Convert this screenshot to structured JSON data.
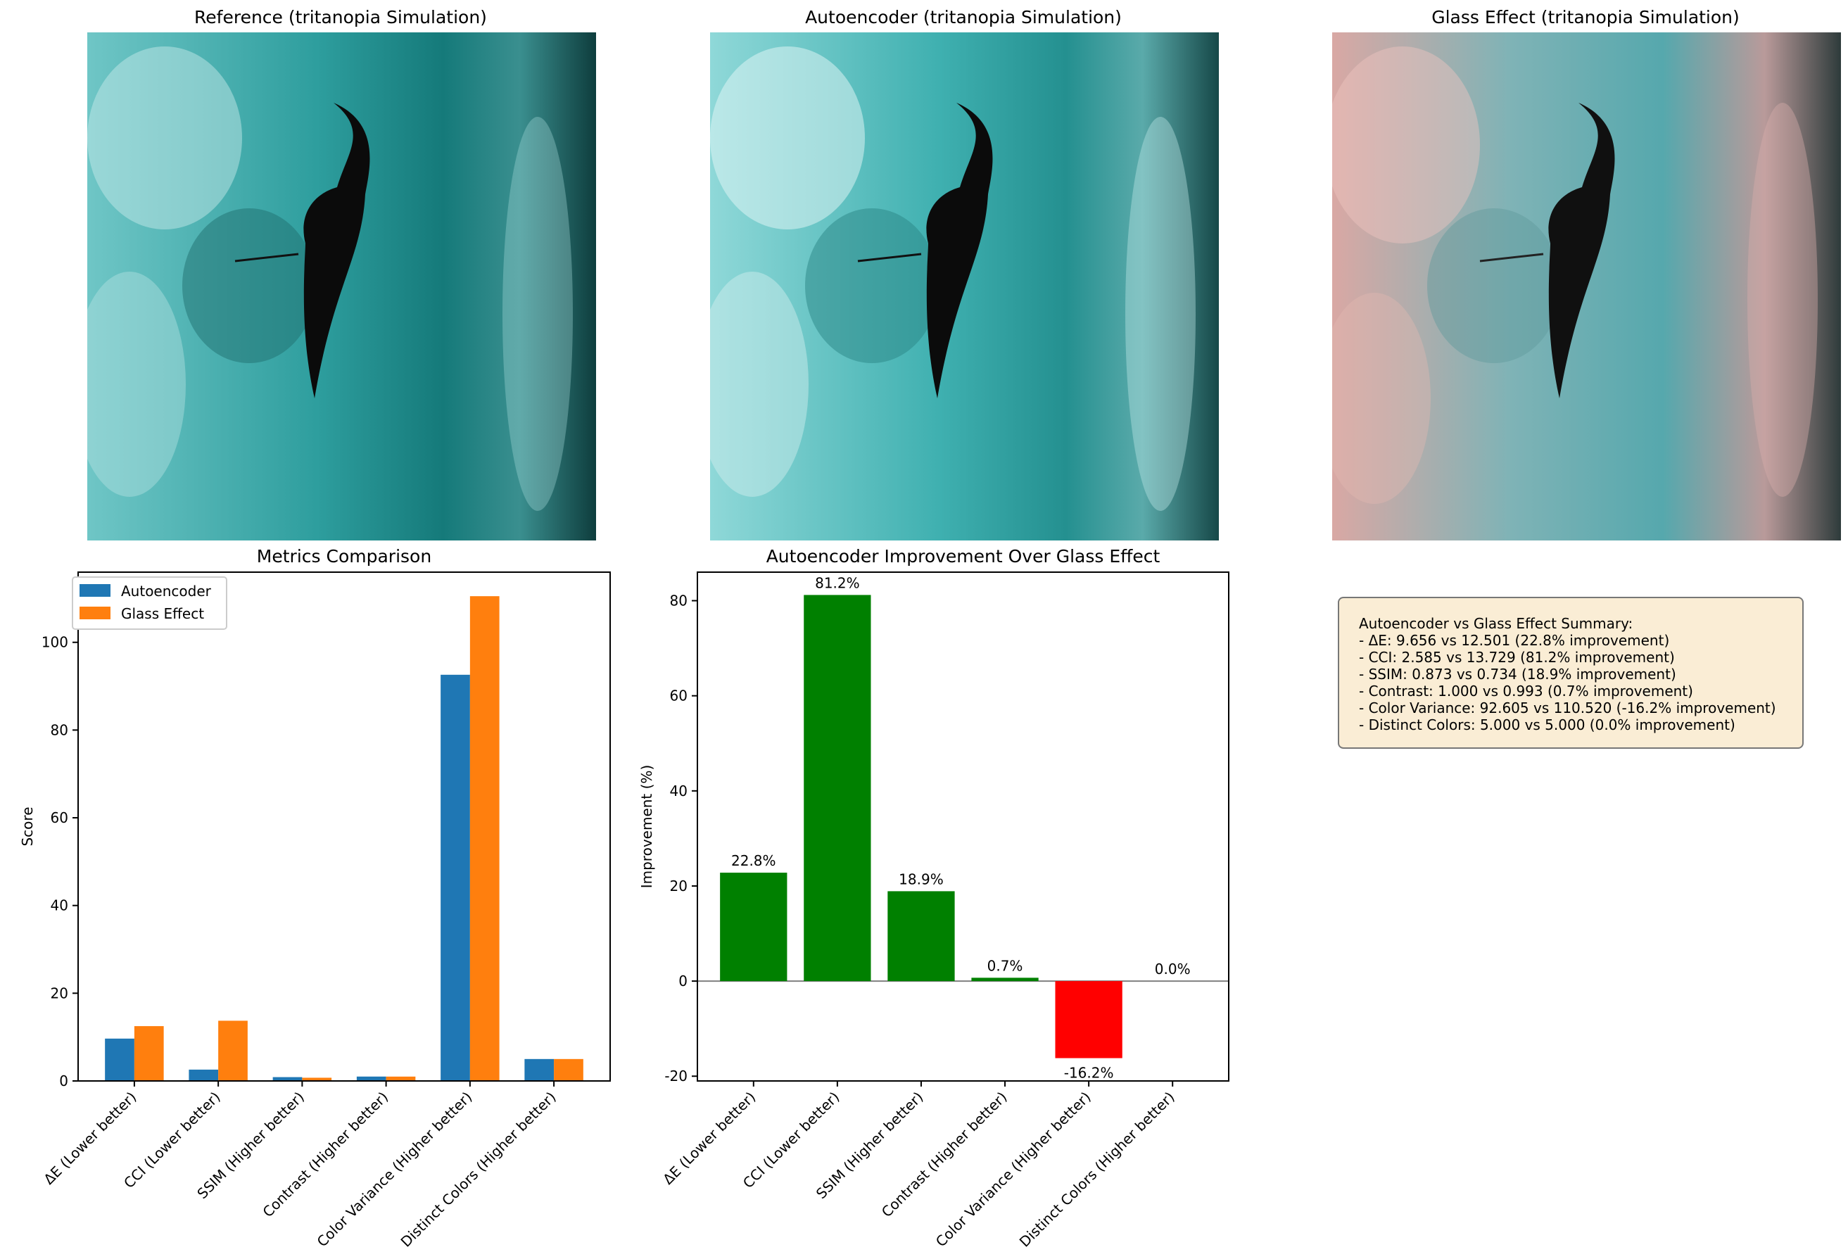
{
  "images": [
    {
      "title": "Reference (tritanopia Simulation)",
      "tone": "teal"
    },
    {
      "title": "Autoencoder (tritanopia Simulation)",
      "tone": "teal-light"
    },
    {
      "title": "Glass Effect (tritanopia Simulation)",
      "tone": "pink-teal"
    }
  ],
  "chart_data": [
    {
      "type": "bar",
      "title": "Metrics Comparison",
      "xlabel": "",
      "ylabel": "Score",
      "categories": [
        "ΔE (Lower better)",
        "CCI (Lower better)",
        "SSIM (Higher better)",
        "Contrast (Higher better)",
        "Color Variance (Higher better)",
        "Distinct Colors (Higher better)"
      ],
      "series": [
        {
          "name": "Autoencoder",
          "color": "#1f77b4",
          "values": [
            9.656,
            2.585,
            0.873,
            1.0,
            92.605,
            5.0
          ]
        },
        {
          "name": "Glass Effect",
          "color": "#ff7f0e",
          "values": [
            12.501,
            13.729,
            0.734,
            0.993,
            110.52,
            5.0
          ]
        }
      ],
      "ylim": [
        0,
        116
      ],
      "yticks": [
        0,
        20,
        40,
        60,
        80,
        100
      ],
      "legend": "top-left"
    },
    {
      "type": "bar",
      "title": "Autoencoder Improvement Over Glass Effect",
      "xlabel": "",
      "ylabel": "Improvement (%)",
      "categories": [
        "ΔE (Lower better)",
        "CCI (Lower better)",
        "SSIM (Higher better)",
        "Contrast (Higher better)",
        "Color Variance (Higher better)",
        "Distinct Colors (Higher better)"
      ],
      "values": [
        22.8,
        81.2,
        18.9,
        0.7,
        -16.2,
        0.0
      ],
      "labels": [
        "22.8%",
        "81.2%",
        "18.9%",
        "0.7%",
        "-16.2%",
        "0.0%"
      ],
      "positive_color": "#008000",
      "negative_color": "#ff0000",
      "ylim": [
        -21,
        86
      ],
      "yticks": [
        -20,
        0,
        20,
        40,
        60,
        80
      ]
    }
  ],
  "summary": {
    "heading": "Autoencoder vs Glass Effect Summary:",
    "lines": [
      "- ΔE: 9.656 vs 12.501 (22.8% improvement)",
      "- CCI: 2.585 vs 13.729 (81.2% improvement)",
      "- SSIM: 0.873 vs 0.734 (18.9% improvement)",
      "- Contrast: 1.000 vs 0.993 (0.7% improvement)",
      "- Color Variance: 92.605 vs 110.520 (-16.2% improvement)",
      "- Distinct Colors: 5.000 vs 5.000 (0.0% improvement)"
    ]
  }
}
